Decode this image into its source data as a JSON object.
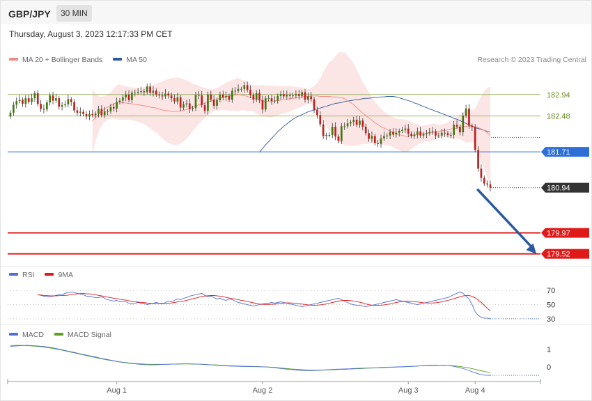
{
  "header": {
    "symbol": "GBP/JPY",
    "timeframe": "30 MIN",
    "datetime": "Thursday, August 3, 2023 12:17:33 PM CET",
    "copyright": "Research © 2023 Trading Central"
  },
  "chart_data": [
    {
      "type": "candlestick",
      "panel": "price",
      "legend": [
        {
          "name": "MA 20 + Bollinger Bands",
          "color": "#f08a80"
        },
        {
          "name": "MA 50",
          "color": "#2c5aa0"
        }
      ],
      "ylim": [
        179.35,
        183.55
      ],
      "x_ticks": [
        {
          "label": "Aug 1",
          "index": 35
        },
        {
          "label": "Aug 2",
          "index": 83
        },
        {
          "label": "Aug 3",
          "index": 131
        },
        {
          "label": "Aug 4",
          "index": 153
        }
      ],
      "closes": [
        182.55,
        182.72,
        182.8,
        182.83,
        182.74,
        182.86,
        182.78,
        182.86,
        182.97,
        182.74,
        182.63,
        182.62,
        182.77,
        182.92,
        182.81,
        182.86,
        182.68,
        182.71,
        182.73,
        182.84,
        182.78,
        182.6,
        182.55,
        182.57,
        182.52,
        182.47,
        182.52,
        182.5,
        182.53,
        182.63,
        182.5,
        182.58,
        182.58,
        182.67,
        182.64,
        182.78,
        182.81,
        182.88,
        182.94,
        182.82,
        182.98,
        182.98,
        183.0,
        183.01,
        182.99,
        183.11,
        182.98,
        183.02,
        182.94,
        182.92,
        182.9,
        182.96,
        182.92,
        182.86,
        182.79,
        182.88,
        182.66,
        182.73,
        182.75,
        182.63,
        182.65,
        182.93,
        182.92,
        182.71,
        182.59,
        182.94,
        182.83,
        182.7,
        182.82,
        182.94,
        182.88,
        182.91,
        182.83,
        183.02,
        183.02,
        183.06,
        183.06,
        183.14,
        183.04,
        182.93,
        182.83,
        182.97,
        182.82,
        182.62,
        182.86,
        182.86,
        182.8,
        182.81,
        182.91,
        182.95,
        182.9,
        182.93,
        182.91,
        182.92,
        182.95,
        182.91,
        182.99,
        182.83,
        182.9,
        182.84,
        182.61,
        182.5,
        182.3,
        182.05,
        182.07,
        182.07,
        182.25,
        182.04,
        181.94,
        182.26,
        182.26,
        182.32,
        182.35,
        182.4,
        182.29,
        182.38,
        182.25,
        182.11,
        181.99,
        182.05,
        181.9,
        181.88,
        182.0,
        182.05,
        182.06,
        182.14,
        182.08,
        182.12,
        182.16,
        182.18,
        182.21,
        182.1,
        182.05,
        182.08,
        182.15,
        182.06,
        182.09,
        182.11,
        182.14,
        182.15,
        182.06,
        182.06,
        182.12,
        182.11,
        182.07,
        182.07,
        182.29,
        182.25,
        182.13,
        182.49,
        182.64,
        182.27,
        182.24,
        181.75,
        181.35,
        181.15,
        181.03,
        181.01,
        180.94
      ],
      "ma20": [
        182.37,
        182.45,
        182.52,
        182.58,
        182.63,
        182.67,
        182.71,
        182.74,
        182.77,
        182.78,
        182.77,
        182.76,
        182.75,
        182.74,
        182.73,
        182.72,
        182.71,
        182.7,
        182.69,
        182.67,
        182.66,
        182.65,
        182.63,
        182.61,
        182.6,
        182.59,
        182.58,
        182.58,
        182.58,
        182.59,
        182.6,
        182.62,
        182.64,
        182.67,
        182.69,
        182.72,
        182.74,
        182.76,
        182.78,
        182.8,
        182.82,
        182.84,
        182.86,
        182.88,
        182.9,
        182.91,
        182.92,
        182.93,
        182.94,
        182.93,
        182.92,
        182.9,
        182.88,
        182.86,
        182.84,
        182.82,
        182.8,
        182.8,
        182.79,
        182.79,
        182.8,
        182.81,
        182.82,
        182.83,
        182.84,
        182.85,
        182.86,
        182.87,
        182.88,
        182.89,
        182.9,
        182.9,
        182.91,
        182.91,
        182.91,
        182.9,
        182.9,
        182.9,
        182.9,
        182.89,
        182.89,
        182.88,
        182.87,
        182.85,
        182.81,
        182.77,
        182.72,
        182.66,
        182.6,
        182.54,
        182.49,
        182.44,
        182.39,
        182.34,
        182.29,
        182.25,
        182.22,
        182.19,
        182.16,
        182.13,
        182.1,
        182.08,
        182.06,
        182.05,
        182.05,
        182.06,
        182.07,
        182.08,
        182.09,
        182.1,
        182.11,
        182.12,
        182.13,
        182.14,
        182.15,
        182.16,
        182.17,
        182.18,
        182.2,
        182.21,
        182.22,
        182.24,
        182.25,
        182.26,
        182.26,
        182.26,
        182.25,
        182.23,
        182.2,
        182.17,
        182.12,
        182.06
      ],
      "ma50": [
        181.7,
        181.78,
        181.86,
        181.93,
        182.0,
        182.07,
        182.14,
        182.2,
        182.26,
        182.31,
        182.36,
        182.41,
        182.45,
        182.48,
        182.51,
        182.54,
        182.57,
        182.59,
        182.61,
        182.63,
        182.65,
        182.67,
        182.69,
        182.71,
        182.73,
        182.75,
        182.76,
        182.77,
        182.79,
        182.8,
        182.81,
        182.82,
        182.83,
        182.84,
        182.85,
        182.86,
        182.86,
        182.87,
        182.88,
        182.88,
        182.89,
        182.89,
        182.9,
        182.9,
        182.9,
        182.89,
        182.87,
        182.85,
        182.83,
        182.81,
        182.79,
        182.76,
        182.74,
        182.71,
        182.68,
        182.66,
        182.63,
        182.61,
        182.58,
        182.56,
        182.53,
        182.51,
        182.48,
        182.46,
        182.43,
        182.41,
        182.38,
        182.35,
        182.32,
        182.29,
        182.26,
        182.23,
        182.21,
        182.19,
        182.17,
        182.15,
        182.13
      ],
      "levels": [
        {
          "value": 182.94,
          "label": "182.94",
          "color": "#9fb56b",
          "style": "line"
        },
        {
          "value": 182.48,
          "label": "182.48",
          "color": "#9fb56b",
          "style": "line"
        },
        {
          "value": 181.71,
          "label": "181.71",
          "color": "#2d6fd6",
          "style": "tag"
        },
        {
          "value": 180.94,
          "label": "180.94",
          "color": "#333333",
          "style": "tag"
        },
        {
          "value": 179.97,
          "label": "179.97",
          "color": "#e01919",
          "style": "tag"
        },
        {
          "value": 179.52,
          "label": "179.52",
          "color": "#e01919",
          "style": "tag"
        }
      ],
      "arrow": {
        "from_index": 153,
        "from_value": 180.94,
        "to_value": 179.52,
        "color": "#2c5aa0"
      }
    },
    {
      "type": "line",
      "panel": "rsi",
      "legend": [
        {
          "name": "RSI",
          "color": "#4f6fd6"
        },
        {
          "name": "9MA",
          "color": "#e01919"
        }
      ],
      "ylim": [
        26,
        82
      ],
      "y_ticks": [
        "70",
        "50",
        "30"
      ],
      "y_tick_values": [
        70,
        50,
        30
      ],
      "rsi": [
        64,
        63,
        62,
        62,
        61,
        62,
        63,
        64,
        64,
        66,
        67,
        68,
        67,
        66,
        65,
        64,
        62,
        62,
        61,
        60,
        60,
        61,
        59,
        57,
        56,
        55,
        56,
        54,
        55,
        54,
        52,
        51,
        52,
        53,
        52,
        52,
        50,
        51,
        52,
        53,
        52,
        51,
        53,
        55,
        54,
        56,
        58,
        57,
        59,
        60,
        62,
        63,
        64,
        65,
        66,
        63,
        61,
        62,
        60,
        58,
        59,
        57,
        56,
        58,
        57,
        55,
        53,
        52,
        51,
        50,
        49,
        48,
        49,
        50,
        51,
        52,
        52,
        53,
        52,
        53,
        54,
        53,
        52,
        51,
        50,
        49,
        48,
        47,
        48,
        49,
        50,
        51,
        52,
        53,
        54,
        55,
        56,
        57,
        58,
        59,
        57,
        55,
        53,
        51,
        50,
        49,
        49,
        48,
        47,
        48,
        49,
        50,
        51,
        52,
        53,
        54,
        55,
        56,
        57,
        56,
        55,
        54,
        53,
        52,
        51,
        50,
        51,
        52,
        53,
        54,
        55,
        56,
        57,
        58,
        59,
        60,
        62,
        64,
        66,
        68,
        66,
        62,
        58,
        50,
        40,
        35,
        32,
        31,
        31,
        30
      ]
    },
    {
      "type": "line",
      "panel": "macd",
      "legend": [
        {
          "name": "MACD",
          "color": "#4f6fd6"
        },
        {
          "name": "MACD Signal",
          "color": "#5aa01e"
        }
      ],
      "ylim": [
        -0.75,
        1.45
      ],
      "y_ticks": [
        "1",
        "0"
      ],
      "y_tick_values": [
        1,
        0
      ],
      "macd": [
        1.15,
        1.18,
        1.2,
        1.21,
        1.2,
        1.18,
        1.15,
        1.12,
        1.06,
        1.0,
        0.93,
        0.86,
        0.8,
        0.73,
        0.67,
        0.6,
        0.54,
        0.47,
        0.41,
        0.35,
        0.29,
        0.24,
        0.2,
        0.17,
        0.14,
        0.12,
        0.11,
        0.12,
        0.13,
        0.14,
        0.15,
        0.16,
        0.17,
        0.17,
        0.16,
        0.15,
        0.13,
        0.11,
        0.09,
        0.07,
        0.05,
        0.04,
        0.03,
        0.02,
        0.02,
        0.01,
        0.01,
        0.0,
        -0.02,
        -0.05,
        -0.09,
        -0.12,
        -0.15,
        -0.18,
        -0.2,
        -0.21,
        -0.21,
        -0.2,
        -0.18,
        -0.16,
        -0.14,
        -0.13,
        -0.12,
        -0.11,
        -0.09,
        -0.08,
        -0.07,
        -0.06,
        -0.05,
        -0.03,
        -0.02,
        -0.01,
        0.0,
        0.01,
        0.02,
        0.03,
        0.05,
        0.07,
        0.09,
        0.1,
        0.1,
        0.08,
        0.04,
        -0.02,
        -0.1,
        -0.2,
        -0.32,
        -0.42,
        -0.47,
        -0.48
      ],
      "signal": [
        1.2,
        1.21,
        1.21,
        1.2,
        1.18,
        1.15,
        1.12,
        1.08,
        1.03,
        0.97,
        0.91,
        0.84,
        0.78,
        0.71,
        0.64,
        0.57,
        0.51,
        0.45,
        0.39,
        0.34,
        0.29,
        0.25,
        0.22,
        0.19,
        0.17,
        0.15,
        0.14,
        0.14,
        0.14,
        0.14,
        0.15,
        0.15,
        0.16,
        0.16,
        0.15,
        0.15,
        0.14,
        0.12,
        0.11,
        0.09,
        0.07,
        0.06,
        0.05,
        0.04,
        0.03,
        0.02,
        0.01,
        0.0,
        -0.01,
        -0.03,
        -0.06,
        -0.09,
        -0.12,
        -0.14,
        -0.16,
        -0.18,
        -0.19,
        -0.19,
        -0.18,
        -0.17,
        -0.16,
        -0.15,
        -0.14,
        -0.12,
        -0.11,
        -0.1,
        -0.08,
        -0.07,
        -0.06,
        -0.05,
        -0.03,
        -0.02,
        -0.01,
        0.0,
        0.02,
        0.03,
        0.05,
        0.06,
        0.07,
        0.08,
        0.09,
        0.08,
        0.06,
        0.03,
        -0.01,
        -0.06,
        -0.13,
        -0.2,
        -0.27,
        -0.32
      ]
    }
  ]
}
